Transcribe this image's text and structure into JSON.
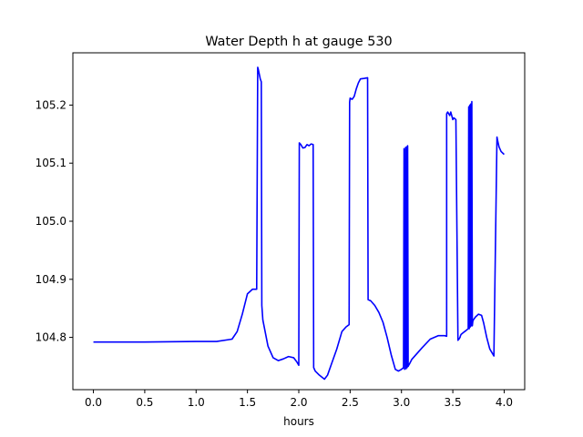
{
  "chart_data": {
    "type": "line",
    "title": "Water Depth h at gauge 530",
    "xlabel": "hours",
    "ylabel": "",
    "xlim": [
      -0.2,
      4.2
    ],
    "ylim": [
      104.71,
      105.29
    ],
    "xticks": [
      0.0,
      0.5,
      1.0,
      1.5,
      2.0,
      2.5,
      3.0,
      3.5,
      4.0
    ],
    "xtick_labels": [
      "0.0",
      "0.5",
      "1.0",
      "1.5",
      "2.0",
      "2.5",
      "3.0",
      "3.5",
      "4.0"
    ],
    "yticks": [
      104.8,
      104.9,
      105.0,
      105.1,
      105.2
    ],
    "ytick_labels": [
      "104.8",
      "104.9",
      "105.0",
      "105.1",
      "105.2"
    ],
    "grid": false,
    "line_color": "#0000ff",
    "series": [
      {
        "x": [
          0.0,
          0.5,
          1.0,
          1.2,
          1.35,
          1.4,
          1.45,
          1.5,
          1.55,
          1.59,
          1.6,
          1.605,
          1.625,
          1.635,
          1.64,
          1.65,
          1.7,
          1.75,
          1.8,
          1.85,
          1.9,
          1.95,
          1.98,
          2.0,
          2.005,
          2.02,
          2.04,
          2.06,
          2.08,
          2.1,
          2.12,
          2.14,
          2.145,
          2.16,
          2.2,
          2.25,
          2.28,
          2.32,
          2.37,
          2.42,
          2.46,
          2.49,
          2.495,
          2.5,
          2.52,
          2.54,
          2.56,
          2.58,
          2.6,
          2.64,
          2.67,
          2.675,
          2.7,
          2.74,
          2.78,
          2.82,
          2.86,
          2.9,
          2.94,
          2.97,
          3.0,
          3.02,
          3.025,
          3.03,
          3.04,
          3.045,
          3.05,
          3.055,
          3.06,
          3.065,
          3.07,
          3.08,
          3.1,
          3.15,
          3.2,
          3.28,
          3.36,
          3.42,
          3.44,
          3.44,
          3.45,
          3.47,
          3.48,
          3.5,
          3.51,
          3.53,
          3.55,
          3.56,
          3.57,
          3.575,
          3.58,
          3.6,
          3.63,
          3.65,
          3.655,
          3.66,
          3.665,
          3.67,
          3.675,
          3.68,
          3.685,
          3.69,
          3.695,
          3.7,
          3.72,
          3.75,
          3.78,
          3.8,
          3.83,
          3.86,
          3.9,
          3.93,
          3.935,
          3.95,
          3.97,
          4.0
        ],
        "y": [
          104.792,
          104.792,
          104.793,
          104.793,
          104.797,
          104.81,
          104.84,
          104.875,
          104.883,
          104.883,
          105.265,
          105.262,
          105.245,
          105.24,
          104.855,
          104.83,
          104.785,
          104.765,
          104.76,
          104.763,
          104.767,
          104.765,
          104.758,
          104.752,
          105.135,
          105.132,
          105.126,
          105.127,
          105.132,
          105.13,
          105.133,
          105.132,
          104.748,
          104.742,
          104.735,
          104.728,
          104.735,
          104.755,
          104.78,
          104.81,
          104.818,
          104.822,
          105.205,
          105.212,
          105.21,
          105.215,
          105.228,
          105.238,
          105.245,
          105.246,
          105.247,
          104.865,
          104.863,
          104.855,
          104.843,
          104.826,
          104.8,
          104.77,
          104.745,
          104.742,
          104.745,
          104.748,
          105.125,
          104.745,
          105.127,
          104.746,
          105.128,
          104.748,
          105.13,
          104.75,
          104.752,
          104.755,
          104.762,
          104.772,
          104.782,
          104.797,
          104.803,
          104.803,
          104.802,
          105.185,
          105.188,
          105.182,
          105.188,
          105.175,
          105.178,
          105.175,
          104.795,
          104.797,
          104.8,
          104.803,
          104.805,
          104.808,
          104.812,
          104.815,
          105.197,
          104.815,
          105.2,
          104.818,
          105.202,
          104.82,
          105.206,
          104.82,
          104.828,
          104.83,
          104.835,
          104.84,
          104.838,
          104.825,
          104.8,
          104.78,
          104.768,
          105.145,
          105.14,
          105.128,
          105.12,
          105.115
        ]
      }
    ]
  }
}
